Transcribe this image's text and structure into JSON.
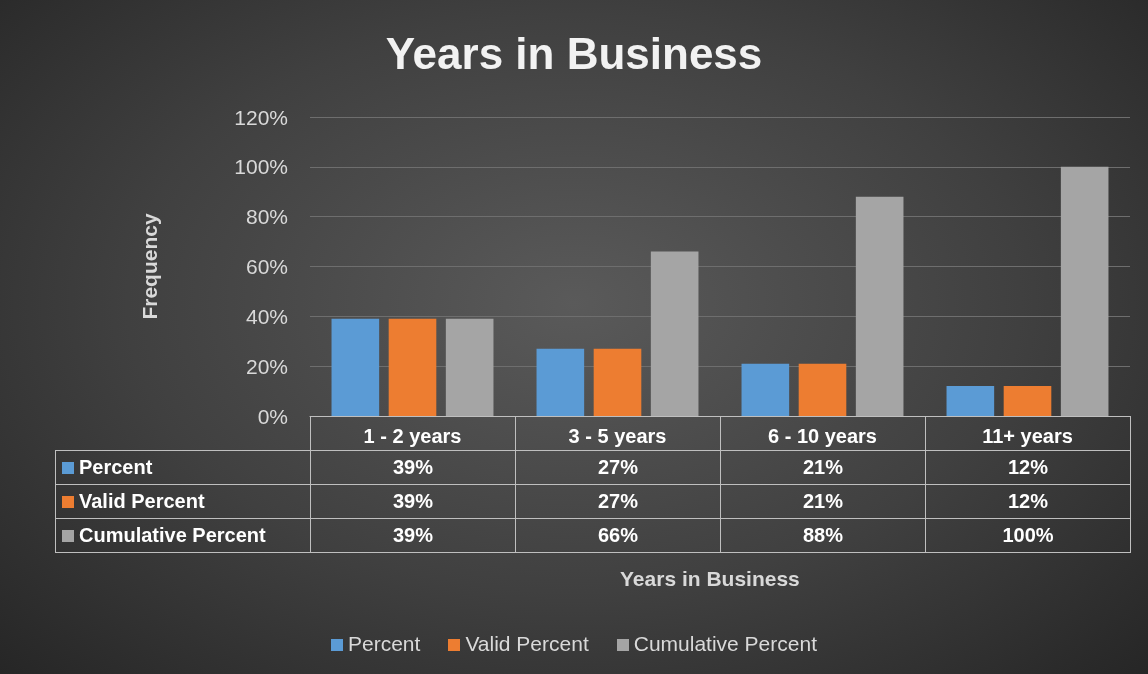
{
  "chart_data": {
    "type": "bar",
    "title": "Years in Business",
    "annotations": [
      "Years in Business"
    ],
    "ylabel": "Frequency",
    "categories": [
      "1 - 2 years",
      "3 - 5 years",
      "6 - 10 years",
      "11+ years"
    ],
    "series": [
      {
        "name": "Percent",
        "color": "#5b9bd5",
        "values": [
          39,
          27,
          21,
          12
        ],
        "value_labels": [
          "39%",
          "27%",
          "21%",
          "12%"
        ]
      },
      {
        "name": "Valid Percent",
        "color": "#ed7d31",
        "values": [
          39,
          27,
          21,
          12
        ],
        "value_labels": [
          "39%",
          "27%",
          "21%",
          "12%"
        ]
      },
      {
        "name": "Cumulative Percent",
        "color": "#a5a5a5",
        "values": [
          39,
          66,
          88,
          100
        ],
        "value_labels": [
          "39%",
          "66%",
          "88%",
          "100%"
        ]
      }
    ],
    "ylim": [
      0,
      120
    ],
    "yticks": [
      {
        "value": 0,
        "label": "0%"
      },
      {
        "value": 20,
        "label": "20%"
      },
      {
        "value": 40,
        "label": "40%"
      },
      {
        "value": 60,
        "label": "60%"
      },
      {
        "value": 80,
        "label": "80%"
      },
      {
        "value": 100,
        "label": "100%"
      },
      {
        "value": 120,
        "label": "120%"
      }
    ],
    "grid": "y",
    "legend": "bottom"
  }
}
